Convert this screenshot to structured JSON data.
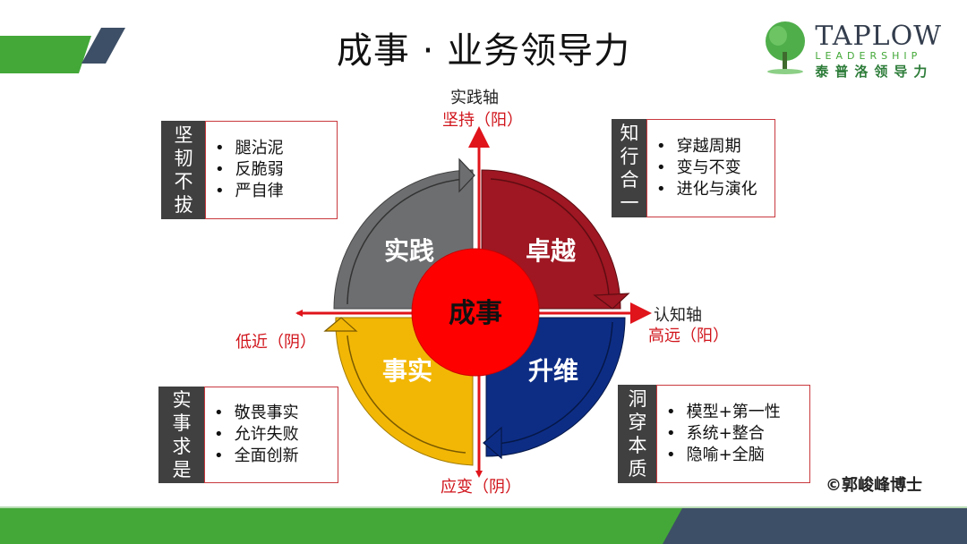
{
  "title": "成事 · 业务领导力",
  "logo": {
    "name": "TAPLOW",
    "sub": "LEADERSHIP",
    "cn": "泰普洛领导力"
  },
  "axes": {
    "vertical": {
      "name": "实践轴",
      "top": "坚持（阳）",
      "bottom": "应变（阴）"
    },
    "horizontal": {
      "name": "认知轴",
      "right": "高远（阳）",
      "left": "低近（阴）"
    }
  },
  "center": "成事",
  "segments": [
    {
      "label": "实践",
      "color": "#6d6e70"
    },
    {
      "label": "卓越",
      "color": "#9e1722"
    },
    {
      "label": "升维",
      "color": "#0d2d85"
    },
    {
      "label": "事实",
      "color": "#f2b705"
    }
  ],
  "quadrants": {
    "top_left": {
      "label": [
        "坚",
        "韧",
        "不",
        "拔"
      ],
      "items": [
        "腿沾泥",
        "反脆弱",
        "严自律"
      ]
    },
    "top_right": {
      "label": [
        "知",
        "行",
        "合",
        "一"
      ],
      "items": [
        "穿越周期",
        "变与不变",
        "进化与演化"
      ]
    },
    "bottom_left": {
      "label": [
        "实",
        "事",
        "求",
        "是"
      ],
      "items": [
        "敬畏事实",
        "允许失败",
        "全面创新"
      ]
    },
    "bottom_right": {
      "label": [
        "洞",
        "穿",
        "本",
        "质"
      ],
      "items": [
        "模型+第一性",
        "系统+整合",
        "隐喻+全脑"
      ]
    }
  },
  "copyright": "©郭峻峰博士",
  "colors": {
    "green": "#43a838",
    "navy": "#3d4f66",
    "red": "#e00000",
    "axis": "#e0141b"
  }
}
